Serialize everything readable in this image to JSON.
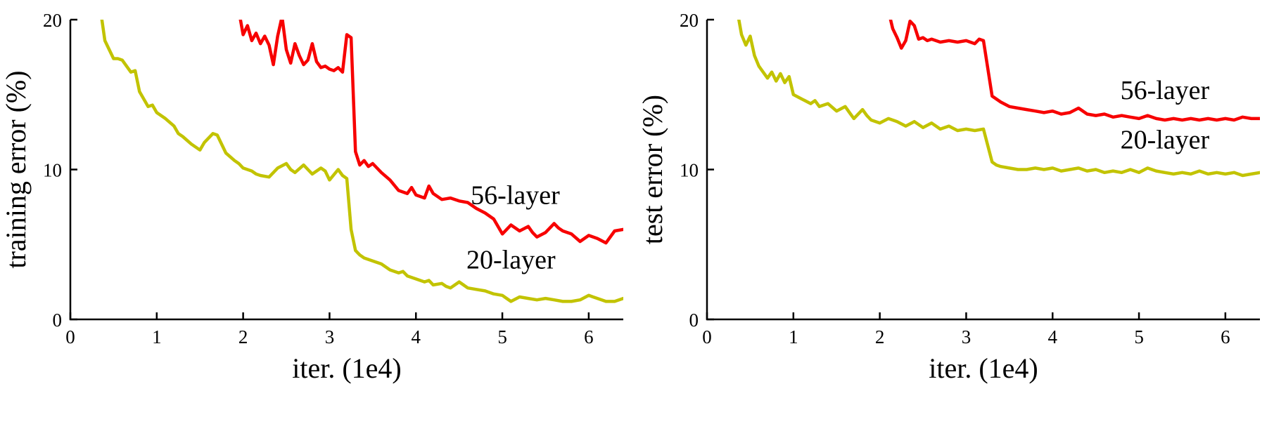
{
  "page": {
    "background": "#ffffff"
  },
  "colors": {
    "axis": "#000000",
    "red": "#f70000",
    "yellow": "#c2c300"
  },
  "chart_data": [
    {
      "type": "line",
      "title": "",
      "xlabel": "iter. (1e4)",
      "ylabel": "training error (%)",
      "xlim": [
        0,
        6.4
      ],
      "ylim": [
        0,
        20
      ],
      "xticks": [
        0,
        1,
        2,
        3,
        4,
        5,
        6
      ],
      "yticks": [
        0,
        10,
        20
      ],
      "grid": false,
      "legend_position": "inline-annotations",
      "series": [
        {
          "name": "56-layer",
          "color": "#f70000",
          "points": [
            [
              1.95,
              20.6
            ],
            [
              2.0,
              19.0
            ],
            [
              2.05,
              19.6
            ],
            [
              2.1,
              18.6
            ],
            [
              2.15,
              19.1
            ],
            [
              2.2,
              18.4
            ],
            [
              2.25,
              18.9
            ],
            [
              2.3,
              18.3
            ],
            [
              2.35,
              17.0
            ],
            [
              2.4,
              18.9
            ],
            [
              2.45,
              20.2
            ],
            [
              2.5,
              18.0
            ],
            [
              2.55,
              17.1
            ],
            [
              2.6,
              18.4
            ],
            [
              2.65,
              17.6
            ],
            [
              2.7,
              17.0
            ],
            [
              2.75,
              17.3
            ],
            [
              2.8,
              18.4
            ],
            [
              2.85,
              17.2
            ],
            [
              2.9,
              16.8
            ],
            [
              2.95,
              16.9
            ],
            [
              3.0,
              16.7
            ],
            [
              3.05,
              16.6
            ],
            [
              3.1,
              16.8
            ],
            [
              3.15,
              16.5
            ],
            [
              3.2,
              19.0
            ],
            [
              3.25,
              18.8
            ],
            [
              3.3,
              11.2
            ],
            [
              3.35,
              10.3
            ],
            [
              3.4,
              10.6
            ],
            [
              3.45,
              10.2
            ],
            [
              3.5,
              10.4
            ],
            [
              3.6,
              9.8
            ],
            [
              3.7,
              9.3
            ],
            [
              3.8,
              8.6
            ],
            [
              3.9,
              8.4
            ],
            [
              3.95,
              8.8
            ],
            [
              4.0,
              8.3
            ],
            [
              4.1,
              8.1
            ],
            [
              4.15,
              8.9
            ],
            [
              4.2,
              8.4
            ],
            [
              4.3,
              8.0
            ],
            [
              4.4,
              8.1
            ],
            [
              4.5,
              7.9
            ],
            [
              4.6,
              7.8
            ],
            [
              4.7,
              7.4
            ],
            [
              4.8,
              7.1
            ],
            [
              4.9,
              6.7
            ],
            [
              5.0,
              5.7
            ],
            [
              5.05,
              6.0
            ],
            [
              5.1,
              6.3
            ],
            [
              5.2,
              5.9
            ],
            [
              5.3,
              6.2
            ],
            [
              5.35,
              5.8
            ],
            [
              5.4,
              5.5
            ],
            [
              5.5,
              5.8
            ],
            [
              5.6,
              6.4
            ],
            [
              5.65,
              6.1
            ],
            [
              5.7,
              5.9
            ],
            [
              5.8,
              5.7
            ],
            [
              5.9,
              5.2
            ],
            [
              6.0,
              5.6
            ],
            [
              6.1,
              5.4
            ],
            [
              6.2,
              5.1
            ],
            [
              6.3,
              5.9
            ],
            [
              6.4,
              6.0
            ]
          ]
        },
        {
          "name": "20-layer",
          "color": "#c2c300",
          "points": [
            [
              0.35,
              20.6
            ],
            [
              0.4,
              18.6
            ],
            [
              0.5,
              17.4
            ],
            [
              0.55,
              17.4
            ],
            [
              0.6,
              17.3
            ],
            [
              0.7,
              16.5
            ],
            [
              0.75,
              16.6
            ],
            [
              0.8,
              15.2
            ],
            [
              0.9,
              14.2
            ],
            [
              0.95,
              14.3
            ],
            [
              1.0,
              13.8
            ],
            [
              1.1,
              13.4
            ],
            [
              1.2,
              12.9
            ],
            [
              1.25,
              12.4
            ],
            [
              1.3,
              12.2
            ],
            [
              1.4,
              11.7
            ],
            [
              1.5,
              11.3
            ],
            [
              1.55,
              11.8
            ],
            [
              1.6,
              12.1
            ],
            [
              1.65,
              12.4
            ],
            [
              1.7,
              12.3
            ],
            [
              1.8,
              11.1
            ],
            [
              1.9,
              10.6
            ],
            [
              1.95,
              10.4
            ],
            [
              2.0,
              10.1
            ],
            [
              2.1,
              9.9
            ],
            [
              2.15,
              9.7
            ],
            [
              2.2,
              9.6
            ],
            [
              2.3,
              9.5
            ],
            [
              2.4,
              10.1
            ],
            [
              2.5,
              10.4
            ],
            [
              2.55,
              10.0
            ],
            [
              2.6,
              9.8
            ],
            [
              2.7,
              10.3
            ],
            [
              2.75,
              10.0
            ],
            [
              2.8,
              9.7
            ],
            [
              2.9,
              10.1
            ],
            [
              2.95,
              9.9
            ],
            [
              3.0,
              9.3
            ],
            [
              3.1,
              10.0
            ],
            [
              3.15,
              9.6
            ],
            [
              3.2,
              9.4
            ],
            [
              3.25,
              6.0
            ],
            [
              3.3,
              4.6
            ],
            [
              3.35,
              4.3
            ],
            [
              3.4,
              4.1
            ],
            [
              3.5,
              3.9
            ],
            [
              3.6,
              3.7
            ],
            [
              3.7,
              3.3
            ],
            [
              3.8,
              3.1
            ],
            [
              3.85,
              3.2
            ],
            [
              3.9,
              2.9
            ],
            [
              4.0,
              2.7
            ],
            [
              4.1,
              2.5
            ],
            [
              4.15,
              2.6
            ],
            [
              4.2,
              2.3
            ],
            [
              4.3,
              2.4
            ],
            [
              4.35,
              2.2
            ],
            [
              4.4,
              2.1
            ],
            [
              4.5,
              2.5
            ],
            [
              4.55,
              2.3
            ],
            [
              4.6,
              2.1
            ],
            [
              4.7,
              2.0
            ],
            [
              4.8,
              1.9
            ],
            [
              4.9,
              1.7
            ],
            [
              5.0,
              1.6
            ],
            [
              5.05,
              1.4
            ],
            [
              5.1,
              1.2
            ],
            [
              5.2,
              1.5
            ],
            [
              5.3,
              1.4
            ],
            [
              5.4,
              1.3
            ],
            [
              5.5,
              1.4
            ],
            [
              5.6,
              1.3
            ],
            [
              5.7,
              1.2
            ],
            [
              5.8,
              1.2
            ],
            [
              5.9,
              1.3
            ],
            [
              6.0,
              1.6
            ],
            [
              6.05,
              1.5
            ],
            [
              6.1,
              1.4
            ],
            [
              6.2,
              1.2
            ],
            [
              6.3,
              1.2
            ],
            [
              6.4,
              1.4
            ]
          ]
        }
      ],
      "annotations": [
        {
          "text": "56-layer",
          "x": 5.15,
          "y": 7.7
        },
        {
          "text": "20-layer",
          "x": 5.1,
          "y": 3.4
        }
      ]
    },
    {
      "type": "line",
      "title": "",
      "xlabel": "iter. (1e4)",
      "ylabel": "test error (%)",
      "xlim": [
        0,
        6.4
      ],
      "ylim": [
        0,
        20
      ],
      "xticks": [
        0,
        1,
        2,
        3,
        4,
        5,
        6
      ],
      "yticks": [
        0,
        10,
        20
      ],
      "grid": false,
      "legend_position": "inline-annotations",
      "series": [
        {
          "name": "56-layer",
          "color": "#f70000",
          "points": [
            [
              2.1,
              20.6
            ],
            [
              2.15,
              19.4
            ],
            [
              2.2,
              18.8
            ],
            [
              2.25,
              18.1
            ],
            [
              2.3,
              18.6
            ],
            [
              2.35,
              19.9
            ],
            [
              2.4,
              19.6
            ],
            [
              2.45,
              18.7
            ],
            [
              2.5,
              18.8
            ],
            [
              2.55,
              18.6
            ],
            [
              2.6,
              18.7
            ],
            [
              2.7,
              18.5
            ],
            [
              2.8,
              18.6
            ],
            [
              2.9,
              18.5
            ],
            [
              3.0,
              18.6
            ],
            [
              3.1,
              18.4
            ],
            [
              3.15,
              18.7
            ],
            [
              3.2,
              18.6
            ],
            [
              3.3,
              14.9
            ],
            [
              3.4,
              14.5
            ],
            [
              3.5,
              14.2
            ],
            [
              3.6,
              14.1
            ],
            [
              3.7,
              14.0
            ],
            [
              3.8,
              13.9
            ],
            [
              3.9,
              13.8
            ],
            [
              4.0,
              13.9
            ],
            [
              4.1,
              13.7
            ],
            [
              4.2,
              13.8
            ],
            [
              4.3,
              14.1
            ],
            [
              4.4,
              13.7
            ],
            [
              4.5,
              13.6
            ],
            [
              4.6,
              13.7
            ],
            [
              4.7,
              13.5
            ],
            [
              4.8,
              13.6
            ],
            [
              4.9,
              13.5
            ],
            [
              5.0,
              13.4
            ],
            [
              5.1,
              13.6
            ],
            [
              5.2,
              13.4
            ],
            [
              5.3,
              13.3
            ],
            [
              5.4,
              13.4
            ],
            [
              5.5,
              13.3
            ],
            [
              5.6,
              13.4
            ],
            [
              5.7,
              13.3
            ],
            [
              5.8,
              13.4
            ],
            [
              5.9,
              13.3
            ],
            [
              6.0,
              13.4
            ],
            [
              6.1,
              13.3
            ],
            [
              6.2,
              13.5
            ],
            [
              6.3,
              13.4
            ],
            [
              6.4,
              13.4
            ]
          ]
        },
        {
          "name": "20-layer",
          "color": "#c2c300",
          "points": [
            [
              0.35,
              20.6
            ],
            [
              0.4,
              19.0
            ],
            [
              0.45,
              18.3
            ],
            [
              0.5,
              18.9
            ],
            [
              0.55,
              17.6
            ],
            [
              0.6,
              16.9
            ],
            [
              0.7,
              16.1
            ],
            [
              0.75,
              16.5
            ],
            [
              0.8,
              15.9
            ],
            [
              0.85,
              16.4
            ],
            [
              0.9,
              15.8
            ],
            [
              0.95,
              16.2
            ],
            [
              1.0,
              15.0
            ],
            [
              1.1,
              14.7
            ],
            [
              1.2,
              14.4
            ],
            [
              1.25,
              14.6
            ],
            [
              1.3,
              14.2
            ],
            [
              1.4,
              14.4
            ],
            [
              1.5,
              13.9
            ],
            [
              1.6,
              14.2
            ],
            [
              1.65,
              13.8
            ],
            [
              1.7,
              13.4
            ],
            [
              1.8,
              14.0
            ],
            [
              1.85,
              13.6
            ],
            [
              1.9,
              13.3
            ],
            [
              2.0,
              13.1
            ],
            [
              2.1,
              13.4
            ],
            [
              2.2,
              13.2
            ],
            [
              2.3,
              12.9
            ],
            [
              2.4,
              13.2
            ],
            [
              2.5,
              12.8
            ],
            [
              2.6,
              13.1
            ],
            [
              2.7,
              12.7
            ],
            [
              2.8,
              12.9
            ],
            [
              2.9,
              12.6
            ],
            [
              3.0,
              12.7
            ],
            [
              3.1,
              12.6
            ],
            [
              3.2,
              12.7
            ],
            [
              3.3,
              10.5
            ],
            [
              3.35,
              10.3
            ],
            [
              3.4,
              10.2
            ],
            [
              3.5,
              10.1
            ],
            [
              3.6,
              10.0
            ],
            [
              3.7,
              10.0
            ],
            [
              3.8,
              10.1
            ],
            [
              3.9,
              10.0
            ],
            [
              4.0,
              10.1
            ],
            [
              4.1,
              9.9
            ],
            [
              4.2,
              10.0
            ],
            [
              4.3,
              10.1
            ],
            [
              4.4,
              9.9
            ],
            [
              4.5,
              10.0
            ],
            [
              4.6,
              9.8
            ],
            [
              4.7,
              9.9
            ],
            [
              4.8,
              9.8
            ],
            [
              4.9,
              10.0
            ],
            [
              5.0,
              9.8
            ],
            [
              5.1,
              10.1
            ],
            [
              5.2,
              9.9
            ],
            [
              5.3,
              9.8
            ],
            [
              5.4,
              9.7
            ],
            [
              5.5,
              9.8
            ],
            [
              5.6,
              9.7
            ],
            [
              5.7,
              9.9
            ],
            [
              5.8,
              9.7
            ],
            [
              5.9,
              9.8
            ],
            [
              6.0,
              9.7
            ],
            [
              6.1,
              9.8
            ],
            [
              6.2,
              9.6
            ],
            [
              6.3,
              9.7
            ],
            [
              6.4,
              9.8
            ]
          ]
        }
      ],
      "annotations": [
        {
          "text": "56-layer",
          "x": 5.3,
          "y": 14.7
        },
        {
          "text": "20-layer",
          "x": 5.3,
          "y": 11.4
        }
      ]
    }
  ]
}
